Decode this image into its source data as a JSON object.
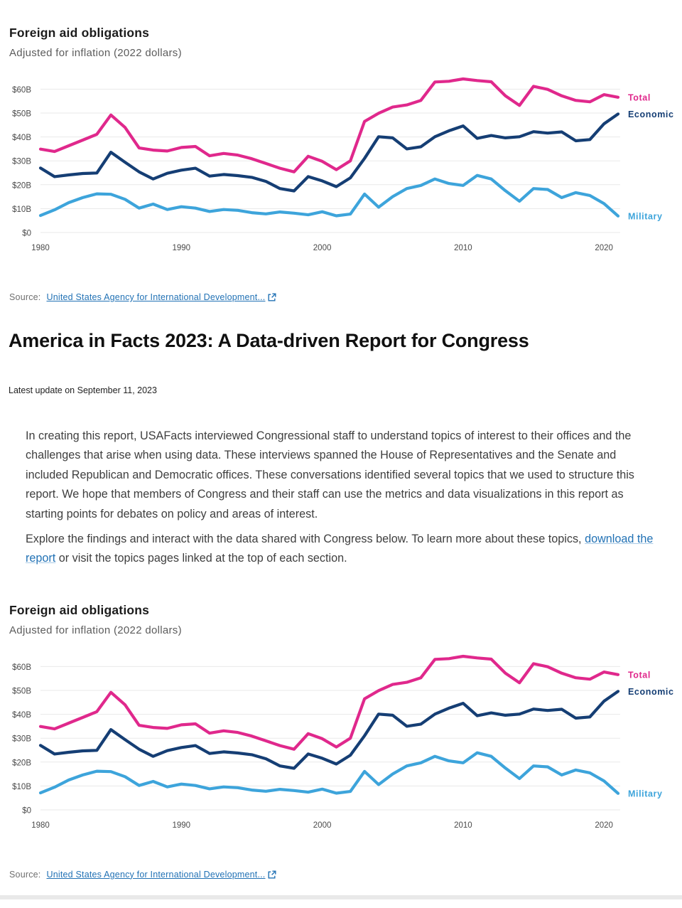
{
  "page": {
    "heading": "America in Facts 2023: A Data-driven Report for Congress",
    "update_line": "Latest update on September 11, 2023",
    "paragraph1": "In creating this report, USAFacts interviewed Congressional staff to understand topics of interest to their offices and the challenges that arise when using data. These interviews spanned the House of Representatives and the Senate and included Republican and Democratic offices. These conversations identified several topics that we used to structure this report. We hope that members of Congress and their staff can use the metrics and data visualizations in this report as starting points for debates on policy and areas of interest.",
    "paragraph2_pre": "Explore the findings and interact with the data shared with Congress below. To learn more about these topics, ",
    "paragraph2_link": "download the report",
    "paragraph2_post": " or visit the topics pages linked at the top of each section."
  },
  "source": {
    "label": "Source:",
    "link_text": "United States Agency for International Development...",
    "icon": "external-link-icon",
    "link_color": "#2272b5"
  },
  "chart_data": {
    "type": "line",
    "title": "Foreign aid obligations",
    "subtitle": "Adjusted for inflation (2022 dollars)",
    "x": [
      1980,
      1981,
      1982,
      1983,
      1984,
      1985,
      1986,
      1987,
      1988,
      1989,
      1990,
      1991,
      1992,
      1993,
      1994,
      1995,
      1996,
      1997,
      1998,
      1999,
      2000,
      2001,
      2002,
      2003,
      2004,
      2005,
      2006,
      2007,
      2008,
      2009,
      2010,
      2011,
      2012,
      2013,
      2014,
      2015,
      2016,
      2017,
      2018,
      2019,
      2020,
      2021
    ],
    "series": [
      {
        "name": "Total",
        "color": "#e0288c",
        "values": [
          34.9,
          33.9,
          36.3,
          38.7,
          41.1,
          49.2,
          44.0,
          35.4,
          34.5,
          34.1,
          35.6,
          36.0,
          32.1,
          33.1,
          32.4,
          30.9,
          28.9,
          26.9,
          25.4,
          31.9,
          29.8,
          26.3,
          30.0,
          46.5,
          49.9,
          52.5,
          53.4,
          55.3,
          63.0,
          63.3,
          64.3,
          63.6,
          63.1,
          57.2,
          53.2,
          61.2,
          59.9,
          57.2,
          55.3,
          54.7,
          57.7,
          56.6
        ]
      },
      {
        "name": "Economic",
        "color": "#153e74",
        "values": [
          27.0,
          23.4,
          24.1,
          24.7,
          24.9,
          33.6,
          29.4,
          25.4,
          22.4,
          24.8,
          26.1,
          26.9,
          23.6,
          24.3,
          23.8,
          23.1,
          21.4,
          18.4,
          17.4,
          23.4,
          21.6,
          19.2,
          22.9,
          31.0,
          40.1,
          39.6,
          35.0,
          35.9,
          40.1,
          42.6,
          44.6,
          39.4,
          40.6,
          39.6,
          40.1,
          42.2,
          41.6,
          42.1,
          38.4,
          38.9,
          45.5,
          49.6
        ]
      },
      {
        "name": "Military",
        "color": "#3da4db",
        "values": [
          7.1,
          9.5,
          12.5,
          14.6,
          16.2,
          16.0,
          13.9,
          10.2,
          11.9,
          9.6,
          10.8,
          10.2,
          8.8,
          9.6,
          9.3,
          8.3,
          7.8,
          8.6,
          8.1,
          7.4,
          8.7,
          7.0,
          7.7,
          16.1,
          10.6,
          15.0,
          18.4,
          19.7,
          22.4,
          20.5,
          19.7,
          23.9,
          22.4,
          17.5,
          13.1,
          18.4,
          18.0,
          14.6,
          16.7,
          15.5,
          12.1,
          6.9
        ]
      }
    ],
    "yticks": [
      0,
      10,
      20,
      30,
      40,
      50,
      60
    ],
    "ytick_labels": [
      "$0",
      "$10B",
      "$20B",
      "$30B",
      "$40B",
      "$50B",
      "$60B"
    ],
    "xticks": [
      1980,
      1990,
      2000,
      2010,
      2020
    ],
    "ylim": [
      0,
      65
    ],
    "xlim": [
      1980,
      2021
    ],
    "grid": "horizontal",
    "legend_position": "right-of-line-ends",
    "grid_color": "#e9e9e9",
    "tick_color": "#4a4a4a"
  }
}
